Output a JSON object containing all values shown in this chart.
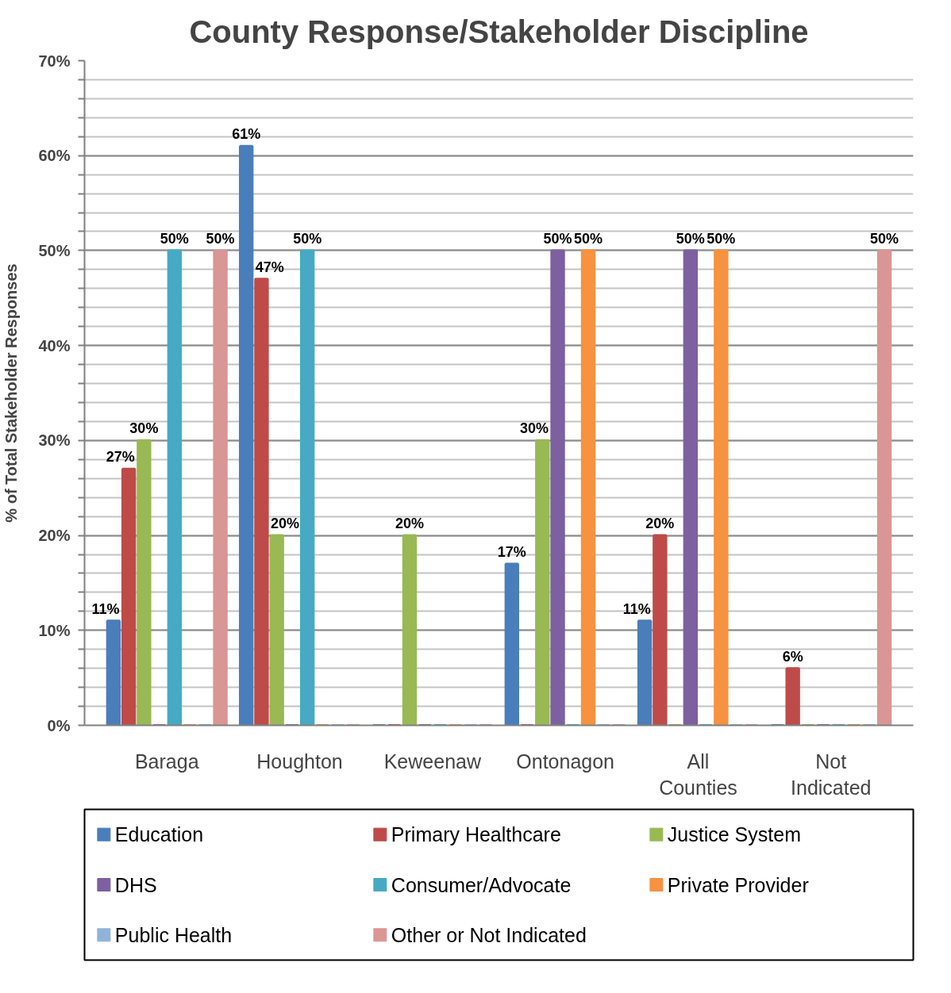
{
  "chart_data": {
    "type": "bar",
    "title": "County Response/Stakeholder Discipline",
    "ylabel": "% of Total Stakeholder Responses",
    "categories": [
      "Baraga",
      "Houghton",
      "Keweenaw",
      "Ontonagon",
      "All Counties",
      "Not Indicated"
    ],
    "series": [
      {
        "name": "Education",
        "color": "#4a7ebb",
        "values": [
          11,
          61,
          0,
          17,
          11,
          0
        ],
        "value_labels": [
          "11%",
          "61%",
          null,
          "17%",
          "11%",
          null
        ]
      },
      {
        "name": "Primary Healthcare",
        "color": "#be4b48",
        "values": [
          27,
          47,
          0,
          0,
          20,
          6
        ],
        "value_labels": [
          "27%",
          "47%",
          null,
          null,
          "20%",
          "6%"
        ]
      },
      {
        "name": "Justice System",
        "color": "#98b954",
        "values": [
          30,
          20,
          20,
          30,
          0,
          0
        ],
        "value_labels": [
          "30%",
          "20%",
          "20%",
          "30%",
          null,
          null
        ]
      },
      {
        "name": "DHS",
        "color": "#7d60a0",
        "values": [
          0,
          0,
          0,
          50,
          50,
          0
        ],
        "value_labels": [
          null,
          null,
          null,
          "50%",
          "50%",
          null
        ]
      },
      {
        "name": "Consumer/Advocate",
        "color": "#46aac5",
        "values": [
          50,
          50,
          0,
          0,
          0,
          0
        ],
        "value_labels": [
          "50%",
          "50%",
          null,
          null,
          null,
          null
        ]
      },
      {
        "name": "Private Provider",
        "color": "#f69240",
        "values": [
          0,
          0,
          0,
          50,
          50,
          0
        ],
        "value_labels": [
          null,
          null,
          null,
          "50%",
          "50%",
          null
        ]
      },
      {
        "name": "Public Health",
        "color": "#91b3d8",
        "values": [
          0,
          0,
          0,
          0,
          0,
          0
        ]
      },
      {
        "name": "Other or Not Indicated",
        "color": "#da9694",
        "values": [
          50,
          0,
          0,
          0,
          0,
          50
        ],
        "value_labels": [
          "50%",
          null,
          null,
          null,
          null,
          "50%"
        ]
      }
    ],
    "ylim": [
      0,
      70
    ],
    "yticks": [
      {
        "value": 0,
        "label": "0%"
      },
      {
        "value": 2,
        "label": null
      },
      {
        "value": 4,
        "label": null
      },
      {
        "value": 6,
        "label": null
      },
      {
        "value": 8,
        "label": null
      },
      {
        "value": 10,
        "label": "10%"
      },
      {
        "value": 12,
        "label": null
      },
      {
        "value": 14,
        "label": null
      },
      {
        "value": 16,
        "label": null
      },
      {
        "value": 18,
        "label": null
      },
      {
        "value": 20,
        "label": "20%"
      },
      {
        "value": 22,
        "label": null
      },
      {
        "value": 24,
        "label": null
      },
      {
        "value": 26,
        "label": null
      },
      {
        "value": 28,
        "label": null
      },
      {
        "value": 30,
        "label": "30%"
      },
      {
        "value": 32,
        "label": null
      },
      {
        "value": 34,
        "label": null
      },
      {
        "value": 36,
        "label": null
      },
      {
        "value": 38,
        "label": null
      },
      {
        "value": 40,
        "label": "40%"
      },
      {
        "value": 42,
        "label": null
      },
      {
        "value": 44,
        "label": null
      },
      {
        "value": 46,
        "label": null
      },
      {
        "value": 48,
        "label": null
      },
      {
        "value": 50,
        "label": "50%"
      },
      {
        "value": 52,
        "label": null
      },
      {
        "value": 54,
        "label": null
      },
      {
        "value": 56,
        "label": null
      },
      {
        "value": 58,
        "label": null
      },
      {
        "value": 60,
        "label": "60%"
      },
      {
        "value": 62,
        "label": null
      },
      {
        "value": 64,
        "label": null
      },
      {
        "value": 66,
        "label": null
      },
      {
        "value": 68,
        "label": null
      },
      {
        "value": 70,
        "label": "70%"
      }
    ],
    "grid": "y",
    "legend": "bottom"
  }
}
